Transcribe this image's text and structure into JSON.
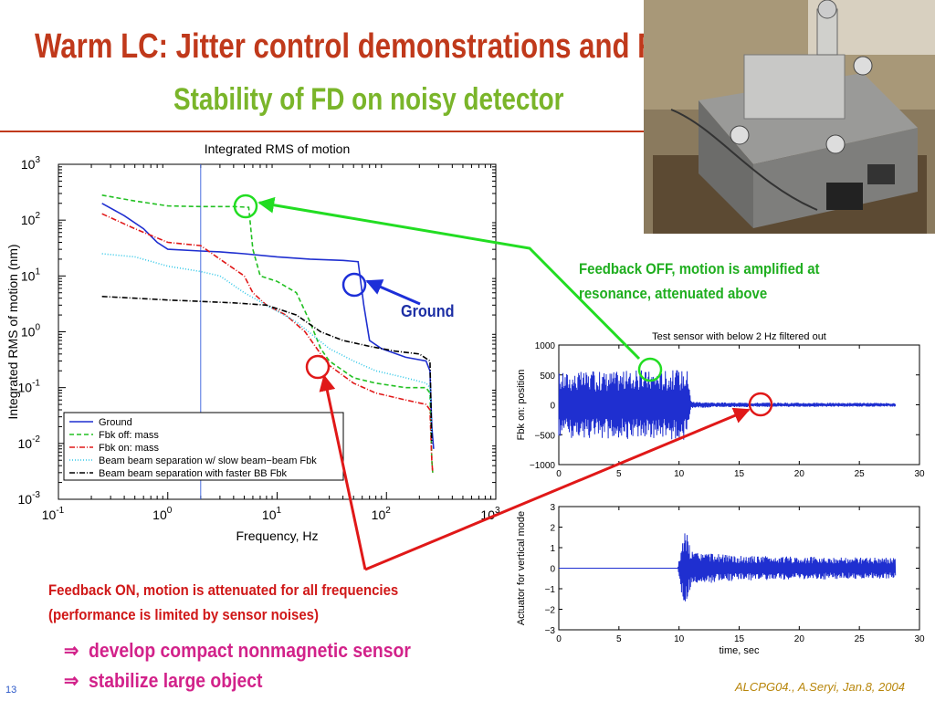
{
  "slide": {
    "title": "Warm LC: Jitter control demonstrations and R&D",
    "subtitle": "Stability of FD on noisy detector",
    "number": "13",
    "footer": "ALCPG04., A.Seryi, Jan.8, 2004",
    "colors": {
      "title": "#c0391b",
      "subtitle": "#7ab52a",
      "bullet": "#d2228a"
    }
  },
  "annotations": {
    "feedback_off": [
      "Feedback OFF, motion is amplified at",
      "resonance, attenuated above"
    ],
    "feedback_on": [
      "Feedback ON, motion is attenuated for all frequencies",
      "(performance is limited by sensor noises)"
    ],
    "ground_label": "Ground"
  },
  "bullets": [
    {
      "arrow": "⇒",
      "text": "develop compact nonmagnetic sensor"
    },
    {
      "arrow": "⇒",
      "text": " stabilize large object"
    }
  ],
  "photo": {
    "icon": "apparatus-photo",
    "description": ""
  },
  "chart_data": [
    {
      "type": "line",
      "title": "Integrated RMS of motion",
      "xlabel": "Frequency, Hz",
      "ylabel": "Integrated RMS of motion (nm)",
      "xscale": "log",
      "yscale": "log",
      "xlim": [
        0.1,
        1000
      ],
      "ylim": [
        0.001,
        1000
      ],
      "xticks": [
        {
          "b": "10",
          "e": "-1"
        },
        {
          "b": "10",
          "e": "0"
        },
        {
          "b": "10",
          "e": "1"
        },
        {
          "b": "10",
          "e": "2"
        },
        {
          "b": "10",
          "e": "3"
        }
      ],
      "yticks": [
        {
          "b": "10",
          "e": "-3"
        },
        {
          "b": "10",
          "e": "-2"
        },
        {
          "b": "10",
          "e": "-1"
        },
        {
          "b": "10",
          "e": "0"
        },
        {
          "b": "10",
          "e": "1"
        },
        {
          "b": "10",
          "e": "2"
        },
        {
          "b": "10",
          "e": "3"
        }
      ],
      "vline_x": 2,
      "legend_position": "bottom-left",
      "series": [
        {
          "name": "Ground",
          "color": "#1f2fd0",
          "dash": "solid",
          "points": [
            [
              0.25,
              200
            ],
            [
              0.4,
              120
            ],
            [
              0.6,
              70
            ],
            [
              0.8,
              40
            ],
            [
              1,
              30
            ],
            [
              2,
              28
            ],
            [
              3,
              27
            ],
            [
              5,
              25
            ],
            [
              10,
              22
            ],
            [
              20,
              20
            ],
            [
              40,
              19
            ],
            [
              55,
              18
            ],
            [
              62,
              3
            ],
            [
              70,
              0.7
            ],
            [
              90,
              0.5
            ],
            [
              150,
              0.35
            ],
            [
              230,
              0.3
            ],
            [
              250,
              0.2
            ],
            [
              260,
              0.02
            ],
            [
              270,
              0.008
            ]
          ]
        },
        {
          "name": "Fbk off: mass",
          "color": "#22c022",
          "dash": "5,3",
          "points": [
            [
              0.25,
              280
            ],
            [
              0.5,
              220
            ],
            [
              1,
              180
            ],
            [
              2,
              175
            ],
            [
              4,
              175
            ],
            [
              5.5,
              170
            ],
            [
              6,
              30
            ],
            [
              7,
              10
            ],
            [
              10,
              8
            ],
            [
              15,
              5
            ],
            [
              20,
              1.5
            ],
            [
              25,
              0.5
            ],
            [
              30,
              0.3
            ],
            [
              50,
              0.15
            ],
            [
              80,
              0.12
            ],
            [
              150,
              0.1
            ],
            [
              230,
              0.1
            ],
            [
              250,
              0.08
            ],
            [
              260,
              0.005
            ],
            [
              265,
              0.003
            ]
          ]
        },
        {
          "name": "Fbk on: mass",
          "color": "#e01818",
          "dash": "6,2,1,2",
          "points": [
            [
              0.25,
              130
            ],
            [
              0.5,
              70
            ],
            [
              1,
              40
            ],
            [
              2,
              35
            ],
            [
              3,
              20
            ],
            [
              5,
              10
            ],
            [
              6,
              5
            ],
            [
              8,
              3
            ],
            [
              12,
              2
            ],
            [
              18,
              1
            ],
            [
              25,
              0.4
            ],
            [
              30,
              0.25
            ],
            [
              50,
              0.12
            ],
            [
              80,
              0.08
            ],
            [
              150,
              0.06
            ],
            [
              230,
              0.05
            ],
            [
              250,
              0.04
            ],
            [
              260,
              0.005
            ],
            [
              265,
              0.003
            ]
          ]
        },
        {
          "name": "Beam beam separation w/ slow beam−beam Fbk",
          "color": "#33c8e8",
          "dash": "1,2",
          "points": [
            [
              0.25,
              25
            ],
            [
              0.5,
              22
            ],
            [
              1,
              15
            ],
            [
              2,
              12
            ],
            [
              3,
              10
            ],
            [
              5,
              5
            ],
            [
              8,
              3
            ],
            [
              15,
              1.5
            ],
            [
              30,
              0.5
            ],
            [
              50,
              0.3
            ],
            [
              80,
              0.2
            ],
            [
              150,
              0.15
            ],
            [
              230,
              0.12
            ],
            [
              250,
              0.1
            ],
            [
              260,
              0.01
            ]
          ]
        },
        {
          "name": "Beam beam separation with faster BB Fbk",
          "color": "#000000",
          "dash": "6,2,1,2",
          "points": [
            [
              0.25,
              4.3
            ],
            [
              0.5,
              4
            ],
            [
              1,
              3.7
            ],
            [
              2,
              3.5
            ],
            [
              4,
              3.3
            ],
            [
              8,
              3
            ],
            [
              15,
              2
            ],
            [
              25,
              1
            ],
            [
              40,
              0.7
            ],
            [
              70,
              0.55
            ],
            [
              120,
              0.45
            ],
            [
              200,
              0.4
            ],
            [
              250,
              0.3
            ],
            [
              260,
              0.01
            ]
          ]
        }
      ]
    },
    {
      "type": "line",
      "title": "Test sensor with below 2 Hz filtered out",
      "xlabel": "",
      "ylabel": "Fbk on: position",
      "xlim": [
        0,
        30
      ],
      "ylim": [
        -1000,
        1000
      ],
      "xticks": [
        "0",
        "5",
        "10",
        "15",
        "20",
        "25",
        "30"
      ],
      "yticks": [
        "−1000",
        "−500",
        "0",
        "500",
        "1000"
      ],
      "series": [
        {
          "color": "#1f2fd0",
          "envelope": [
            [
              0,
              550
            ],
            [
              10.8,
              600
            ],
            [
              11,
              60
            ],
            [
              13,
              40
            ],
            [
              28,
              30
            ]
          ]
        }
      ]
    },
    {
      "type": "line",
      "title": "",
      "xlabel": "time, sec",
      "ylabel": "Actuator for vertical mode",
      "xlim": [
        0,
        30
      ],
      "ylim": [
        -3,
        3
      ],
      "xticks": [
        "0",
        "5",
        "10",
        "15",
        "20",
        "25",
        "30"
      ],
      "yticks": [
        "−3",
        "−2",
        "−1",
        "0",
        "1",
        "2",
        "3"
      ],
      "series": [
        {
          "color": "#1f2fd0",
          "envelope": [
            [
              0,
              0
            ],
            [
              9.9,
              0
            ],
            [
              10.2,
              1.2
            ],
            [
              10.6,
              2
            ],
            [
              11,
              0.8
            ],
            [
              15,
              0.6
            ],
            [
              28,
              0.5
            ]
          ]
        }
      ]
    }
  ]
}
